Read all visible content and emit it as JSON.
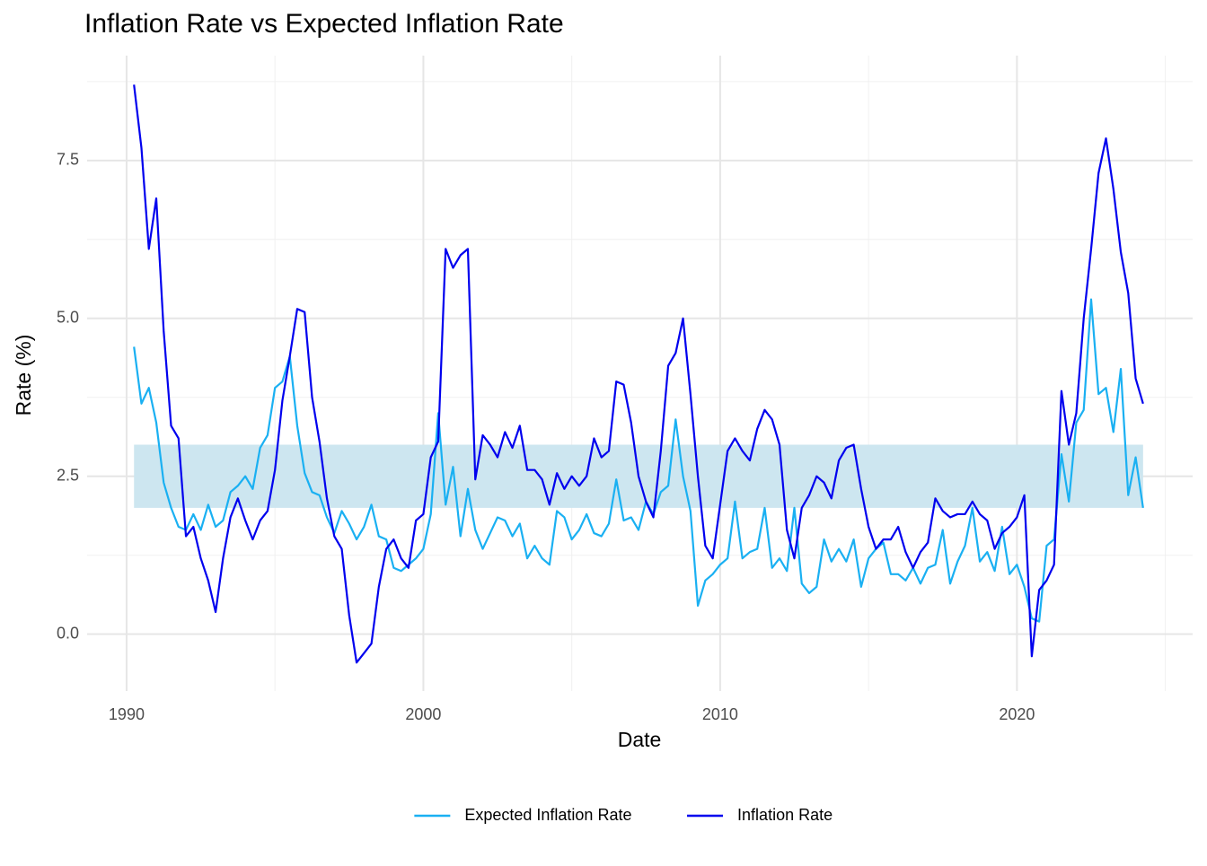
{
  "chart_data": {
    "type": "line",
    "title": "Inflation Rate vs Expected Inflation Rate",
    "x_label": "Date",
    "y_label": "Rate (%)",
    "x": [
      1990.25,
      1990.5,
      1990.75,
      1991,
      1991.25,
      1991.5,
      1991.75,
      1992,
      1992.25,
      1992.5,
      1992.75,
      1993,
      1993.25,
      1993.5,
      1993.75,
      1994,
      1994.25,
      1994.5,
      1994.75,
      1995,
      1995.25,
      1995.5,
      1995.75,
      1996,
      1996.25,
      1996.5,
      1996.75,
      1997,
      1997.25,
      1997.5,
      1997.75,
      1998,
      1998.25,
      1998.5,
      1998.75,
      1999,
      1999.25,
      1999.5,
      1999.75,
      2000,
      2000.25,
      2000.5,
      2000.75,
      2001,
      2001.25,
      2001.5,
      2001.75,
      2002,
      2002.25,
      2002.5,
      2002.75,
      2003,
      2003.25,
      2003.5,
      2003.75,
      2004,
      2004.25,
      2004.5,
      2004.75,
      2005,
      2005.25,
      2005.5,
      2005.75,
      2006,
      2006.25,
      2006.5,
      2006.75,
      2007,
      2007.25,
      2007.5,
      2007.75,
      2008,
      2008.25,
      2008.5,
      2008.75,
      2009,
      2009.25,
      2009.5,
      2009.75,
      2010,
      2010.25,
      2010.5,
      2010.75,
      2011,
      2011.25,
      2011.5,
      2011.75,
      2012,
      2012.25,
      2012.5,
      2012.75,
      2013,
      2013.25,
      2013.5,
      2013.75,
      2014,
      2014.25,
      2014.5,
      2014.75,
      2015,
      2015.25,
      2015.5,
      2015.75,
      2016,
      2016.25,
      2016.5,
      2016.75,
      2017,
      2017.25,
      2017.5,
      2017.75,
      2018,
      2018.25,
      2018.5,
      2018.75,
      2019,
      2019.25,
      2019.5,
      2019.75,
      2020,
      2020.25,
      2020.5,
      2020.75,
      2021,
      2021.25,
      2021.5,
      2021.75,
      2022,
      2022.25,
      2022.5,
      2022.75,
      2023,
      2023.25,
      2023.5,
      2023.75,
      2024,
      2024.25
    ],
    "series": [
      {
        "name": "Expected Inflation Rate",
        "color": "#1ab0f2",
        "values": [
          4.55,
          3.65,
          3.9,
          3.35,
          2.4,
          2.0,
          1.7,
          1.65,
          1.9,
          1.65,
          2.05,
          1.7,
          1.8,
          2.25,
          2.35,
          2.5,
          2.3,
          2.95,
          3.15,
          3.9,
          4.0,
          4.4,
          3.3,
          2.55,
          2.25,
          2.2,
          1.85,
          1.6,
          1.95,
          1.75,
          1.5,
          1.7,
          2.05,
          1.55,
          1.5,
          1.05,
          1.0,
          1.1,
          1.2,
          1.35,
          1.9,
          3.5,
          2.05,
          2.65,
          1.55,
          2.3,
          1.65,
          1.35,
          1.6,
          1.85,
          1.8,
          1.55,
          1.75,
          1.2,
          1.4,
          1.2,
          1.1,
          1.95,
          1.85,
          1.5,
          1.65,
          1.9,
          1.6,
          1.55,
          1.75,
          2.45,
          1.8,
          1.85,
          1.65,
          2.1,
          1.9,
          2.25,
          2.35,
          3.4,
          2.5,
          1.95,
          0.45,
          0.85,
          0.95,
          1.1,
          1.2,
          2.1,
          1.2,
          1.3,
          1.35,
          2.0,
          1.05,
          1.2,
          1.0,
          2.0,
          0.8,
          0.65,
          0.75,
          1.5,
          1.15,
          1.35,
          1.15,
          1.5,
          0.75,
          1.2,
          1.35,
          1.45,
          0.95,
          0.95,
          0.85,
          1.05,
          0.8,
          1.05,
          1.1,
          1.65,
          0.8,
          1.15,
          1.4,
          2.0,
          1.15,
          1.3,
          1.0,
          1.7,
          0.95,
          1.1,
          0.75,
          0.25,
          0.2,
          1.4,
          1.5,
          2.85,
          2.1,
          3.35,
          3.55,
          5.3,
          3.8,
          3.9,
          3.2,
          4.2,
          2.2,
          2.8,
          2.0
        ]
      },
      {
        "name": "Inflation Rate",
        "color": "#0000ee",
        "values": [
          8.7,
          7.7,
          6.1,
          6.9,
          4.8,
          3.3,
          3.1,
          1.55,
          1.7,
          1.2,
          0.85,
          0.35,
          1.2,
          1.85,
          2.15,
          1.8,
          1.5,
          1.8,
          1.95,
          2.6,
          3.7,
          4.4,
          5.15,
          5.1,
          3.75,
          3.05,
          2.15,
          1.55,
          1.35,
          0.3,
          -0.45,
          -0.3,
          -0.15,
          0.75,
          1.35,
          1.5,
          1.2,
          1.05,
          1.8,
          1.9,
          2.8,
          3.05,
          6.1,
          5.8,
          6.0,
          6.1,
          2.45,
          3.15,
          3.0,
          2.8,
          3.2,
          2.95,
          3.3,
          2.6,
          2.6,
          2.45,
          2.05,
          2.55,
          2.3,
          2.5,
          2.35,
          2.5,
          3.1,
          2.8,
          2.9,
          4.0,
          3.95,
          3.35,
          2.5,
          2.1,
          1.85,
          2.9,
          4.25,
          4.45,
          5.0,
          3.8,
          2.5,
          1.4,
          1.2,
          2.05,
          2.9,
          3.1,
          2.9,
          2.75,
          3.25,
          3.55,
          3.4,
          3.0,
          1.65,
          1.2,
          2.0,
          2.2,
          2.5,
          2.4,
          2.15,
          2.75,
          2.95,
          3.0,
          2.3,
          1.7,
          1.35,
          1.5,
          1.5,
          1.7,
          1.3,
          1.05,
          1.3,
          1.45,
          2.15,
          1.95,
          1.85,
          1.9,
          1.9,
          2.1,
          1.9,
          1.8,
          1.35,
          1.6,
          1.7,
          1.85,
          2.2,
          -0.35,
          0.7,
          0.85,
          1.1,
          3.85,
          3.0,
          3.5,
          5.0,
          6.1,
          7.3,
          7.85,
          7.05,
          6.05,
          5.4,
          4.05,
          3.65
        ]
      }
    ],
    "band": {
      "xmin": 1990.25,
      "xmax": 2024.25,
      "ymin": 2,
      "ymax": 3,
      "color": "#cde6f0"
    },
    "xlim": [
      1988.67,
      2025.92
    ],
    "ylim": [
      -0.9,
      9.16
    ],
    "xticks": [
      1990,
      2000,
      2010,
      2020
    ],
    "yticks": [
      {
        "value": 0,
        "label": "0.0"
      },
      2.5,
      {
        "value": 5,
        "label": "5.0"
      },
      7.5
    ],
    "minor_xticks": [
      1995,
      2005,
      2015,
      2025
    ],
    "minor_yticks": [
      1.25,
      3.75,
      6.25,
      8.75
    ],
    "grid": true,
    "legend": "bottom"
  }
}
